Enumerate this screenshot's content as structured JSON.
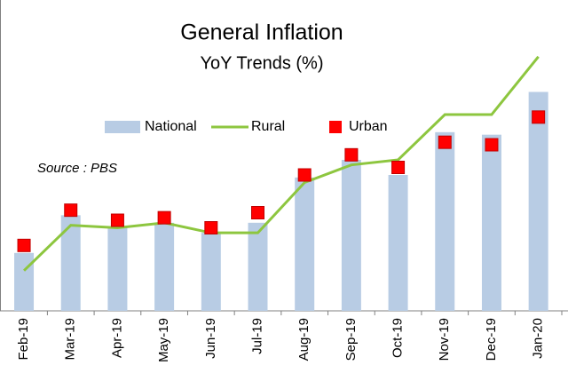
{
  "chart_data": {
    "type": "bar_line",
    "title": "General Inflation",
    "subtitle": "YoY Trends (%)",
    "annotation": "Source : PBS",
    "categories": [
      "Feb-19",
      "Mar-19",
      "Apr-19",
      "May-19",
      "Jun-19",
      "Jul-19",
      "Aug-19",
      "Sep-19",
      "Oct-19",
      "Nov-19",
      "Dec-19",
      "Jan-20"
    ],
    "series": [
      {
        "name": "National",
        "kind": "bar",
        "color": "#b8cce4",
        "values": [
          8.3,
          9.8,
          9.3,
          9.5,
          9.1,
          9.5,
          11.3,
          12.0,
          11.4,
          13.1,
          13.0,
          14.7
        ]
      },
      {
        "name": "Rural",
        "kind": "line",
        "color": "#8dc63f",
        "values": [
          7.6,
          9.4,
          9.3,
          9.5,
          9.1,
          9.1,
          11.1,
          11.8,
          12.0,
          13.8,
          13.8,
          16.1
        ]
      },
      {
        "name": "Urban",
        "kind": "marker",
        "color": "#ff0000",
        "values": [
          8.6,
          10.0,
          9.6,
          9.7,
          9.3,
          9.9,
          11.4,
          12.2,
          11.7,
          12.7,
          12.6,
          13.7
        ]
      }
    ],
    "ylim": [
      6,
      18
    ],
    "grid": false
  }
}
